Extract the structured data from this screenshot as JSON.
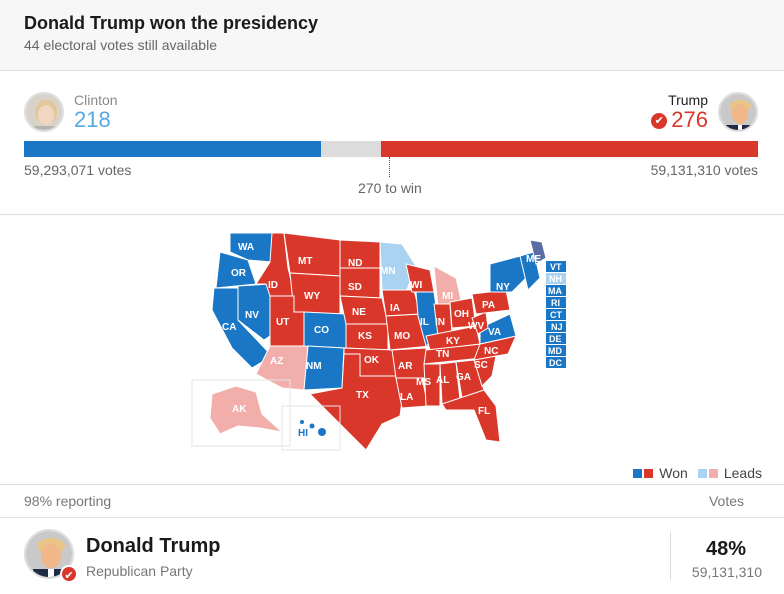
{
  "header": {
    "title": "Donald Trump won the presidency",
    "subtitle": "44 electoral votes still available"
  },
  "clinton": {
    "name": "Clinton",
    "electoral": "218",
    "votes": "59,293,071 votes",
    "electoral_share": 0.405
  },
  "trump": {
    "name": "Trump",
    "electoral": "276",
    "votes": "59,131,310 votes",
    "electoral_share": 0.513,
    "winner_mark": "✔"
  },
  "bar": {
    "threshold_label": "270 to win"
  },
  "legend": {
    "won": "Won",
    "leads": "Leads"
  },
  "colors": {
    "dem_won": "#1977c5",
    "dem_leads": "#a9d3f0",
    "rep_won": "#d9372a",
    "rep_leads": "#f2aeaa",
    "undecided": "#dcdcdc"
  },
  "map_labels": [
    "WA",
    "OR",
    "CA",
    "NV",
    "ID",
    "MT",
    "WY",
    "UT",
    "AZ",
    "CO",
    "NM",
    "ND",
    "SD",
    "NE",
    "KS",
    "OK",
    "TX",
    "MN",
    "IA",
    "MO",
    "AR",
    "LA",
    "WI",
    "IL",
    "MI",
    "IN",
    "OH",
    "KY",
    "TN",
    "MS",
    "AL",
    "GA",
    "FL",
    "SC",
    "NC",
    "VA",
    "WV",
    "PA",
    "NY",
    "ME",
    "AK",
    "HI"
  ],
  "small_states": [
    "VT",
    "NH",
    "MA",
    "RI",
    "CT",
    "NJ",
    "DE",
    "MD",
    "DC"
  ],
  "results": {
    "reporting": "98% reporting",
    "votes_header": "Votes",
    "row": {
      "name": "Donald Trump",
      "party": "Republican Party",
      "pct": "48%",
      "votes": "59,131,310",
      "winner_mark": "✔"
    }
  }
}
